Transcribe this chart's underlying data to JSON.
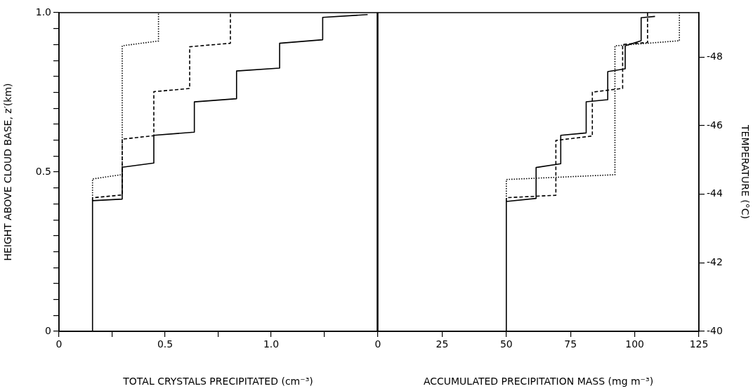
{
  "chart_data": [
    {
      "type": "line",
      "xlabel": "TOTAL CRYSTALS PRECIPITATED (cm⁻³)",
      "ylabel": "HEIGHT ABOVE CLOUD BASE, z′(km)",
      "xlim": [
        0,
        1.5
      ],
      "xticks": [
        0,
        {
          "value": 0.25,
          "label": null
        },
        {
          "value": 0.5,
          "label": "0.5"
        },
        {
          "value": 0.75,
          "label": null
        },
        {
          "value": 1.0,
          "label": "1.0"
        },
        {
          "value": 1.25,
          "label": null
        }
      ],
      "ylim": [
        0,
        1
      ],
      "yticks": [
        0,
        {
          "value": 0.05,
          "label": null
        },
        {
          "value": 0.1,
          "label": null
        },
        {
          "value": 0.15,
          "label": null
        },
        {
          "value": 0.2,
          "label": null
        },
        {
          "value": 0.25,
          "label": null
        },
        {
          "value": 0.3,
          "label": null
        },
        {
          "value": 0.35,
          "label": null
        },
        {
          "value": 0.4,
          "label": null
        },
        {
          "value": 0.45,
          "label": null
        },
        0.5,
        {
          "value": 0.55,
          "label": null
        },
        {
          "value": 0.6,
          "label": null
        },
        {
          "value": 0.65,
          "label": null
        },
        {
          "value": 0.7,
          "label": null
        },
        {
          "value": 0.75,
          "label": null
        },
        {
          "value": 0.8,
          "label": null
        },
        {
          "value": 0.85,
          "label": null
        },
        {
          "value": 0.9,
          "label": null
        },
        {
          "value": 0.95,
          "label": null
        },
        {
          "value": 1.0,
          "label": "1.0"
        }
      ],
      "grid": false,
      "legend": false,
      "marker": "none",
      "series": [
        {
          "color": "#000000",
          "line_style": "solid",
          "x": [
            0.158,
            0.158,
            0.298,
            0.298,
            0.447,
            0.447,
            0.638,
            0.638,
            0.837,
            0.837,
            1.04,
            1.04,
            1.243,
            1.243,
            1.455
          ],
          "values": [
            0,
            0.41,
            0.415,
            0.515,
            0.528,
            0.615,
            0.625,
            0.72,
            0.73,
            0.817,
            0.826,
            0.904,
            0.915,
            0.985,
            0.994
          ]
        },
        {
          "color": "#000000",
          "line_style": "dashed",
          "x": [
            0.158,
            0.158,
            0.298,
            0.298,
            0.447,
            0.447,
            0.616,
            0.616,
            0.808,
            0.808
          ],
          "values": [
            0.41,
            0.419,
            0.428,
            0.603,
            0.614,
            0.752,
            0.762,
            0.893,
            0.904,
            1.0
          ]
        },
        {
          "color": "#000000",
          "line_style": "dotted",
          "x": [
            0.158,
            0.158,
            0.298,
            0.298,
            0.469,
            0.469
          ],
          "values": [
            0.41,
            0.478,
            0.492,
            0.896,
            0.911,
            1.0
          ]
        }
      ]
    },
    {
      "type": "line",
      "xlabel": "ACCUMULATED PRECIPITATION MASS (mg m⁻³)",
      "y2label": "TEMPERATURE (°C)",
      "xlim": [
        0,
        125
      ],
      "xticks": [
        0,
        25,
        50,
        75,
        100,
        125
      ],
      "y2lim": [
        -40,
        -49.3
      ],
      "y2ticks": [
        -40,
        -42,
        -44,
        -46,
        -48
      ],
      "grid": false,
      "legend": false,
      "marker": "none",
      "series": [
        {
          "color": "#000000",
          "line_style": "solid",
          "axis": "y2",
          "x": [
            50,
            50,
            61.6,
            61.6,
            71.2,
            71.2,
            81.1,
            81.1,
            89.5,
            89.5,
            96.3,
            96.3,
            102.5,
            102.5,
            107.9
          ],
          "values": [
            -40,
            -43.79,
            -43.88,
            -44.78,
            -44.89,
            -45.72,
            -45.79,
            -46.7,
            -46.76,
            -47.58,
            -47.66,
            -48.33,
            -48.48,
            -49.15,
            -49.19
          ]
        },
        {
          "color": "#000000",
          "line_style": "dashed",
          "axis": "y2",
          "x": [
            50,
            50,
            69.3,
            69.3,
            83.5,
            83.5,
            95.3,
            95.3,
            105,
            105
          ],
          "values": [
            -43.79,
            -43.9,
            -43.97,
            -45.57,
            -45.7,
            -46.98,
            -47.09,
            -48.37,
            -48.43,
            -49.3
          ]
        },
        {
          "color": "#000000",
          "line_style": "dotted",
          "axis": "y2",
          "x": [
            50,
            50,
            92.3,
            92.3,
            117.4,
            117.4
          ],
          "values": [
            -43.79,
            -44.43,
            -44.57,
            -48.33,
            -48.48,
            -49.3
          ]
        }
      ]
    }
  ]
}
